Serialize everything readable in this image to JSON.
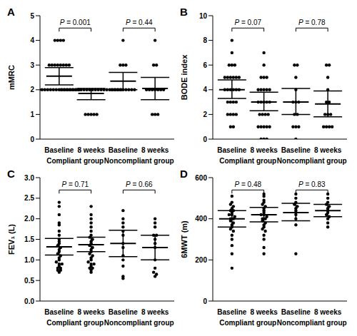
{
  "chart_data": [
    {
      "type": "scatter",
      "panel": "A",
      "y_label": "mMRC",
      "categories": [
        "Baseline",
        "8 weeks",
        "Baseline",
        "8 weeks"
      ],
      "groups": [
        "Compliant group",
        "Noncompliant group"
      ],
      "ylim": [
        0,
        5
      ],
      "yticks": [
        0,
        1,
        2,
        3,
        4,
        5
      ],
      "color": "#000000",
      "marker": "circle",
      "points": [
        [
          4,
          4,
          4,
          4,
          3,
          3,
          3,
          3,
          3,
          3,
          3,
          3,
          2,
          2,
          2,
          2,
          2,
          2,
          2,
          2,
          2,
          2,
          2,
          2,
          2,
          2,
          2
        ],
        [
          2,
          2,
          2,
          2,
          2,
          2,
          2,
          2,
          2,
          2,
          2,
          2,
          2,
          2,
          2,
          2,
          2,
          2,
          2,
          2,
          2,
          2,
          1,
          1,
          1,
          1,
          1
        ],
        [
          4,
          3,
          3,
          3,
          2,
          2,
          2,
          2,
          2,
          2,
          2,
          2,
          2
        ],
        [
          4,
          3,
          3,
          2,
          2,
          2,
          2,
          2,
          2,
          2,
          1,
          1,
          1
        ]
      ],
      "mean": [
        2.55,
        1.85,
        2.35,
        2.05
      ],
      "ci_low": [
        2.2,
        1.6,
        2.0,
        1.6
      ],
      "ci_high": [
        2.9,
        2.05,
        2.7,
        2.5
      ],
      "annotations": [
        {
          "text": "P = 0.001",
          "from": 0,
          "to": 1
        },
        {
          "text": "P = 0.44",
          "from": 2,
          "to": 3
        }
      ]
    },
    {
      "type": "scatter",
      "panel": "B",
      "y_label": "BODE index",
      "categories": [
        "Baseline",
        "8 weeks",
        "Baseline",
        "8 weeks"
      ],
      "groups": [
        "Compliant group",
        "Noncompliant group"
      ],
      "ylim": [
        0,
        10
      ],
      "yticks": [
        0,
        2,
        4,
        6,
        8,
        10
      ],
      "color": "#000000",
      "marker": "circle",
      "points": [
        [
          8,
          7,
          6,
          6,
          6,
          5,
          5,
          5,
          5,
          5,
          5,
          4,
          4,
          4,
          4,
          4,
          4,
          3,
          3,
          3,
          3,
          2,
          2,
          2,
          2,
          1,
          1
        ],
        [
          7,
          6,
          5,
          5,
          5,
          4,
          4,
          4,
          4,
          4,
          3,
          3,
          3,
          3,
          3,
          2,
          2,
          2,
          2,
          1,
          1,
          1,
          1,
          1,
          0,
          0,
          0
        ],
        [
          6,
          6,
          5,
          4,
          3,
          3,
          3,
          2,
          2,
          1,
          1,
          1,
          0
        ],
        [
          6,
          6,
          5,
          4,
          3,
          3,
          2,
          2,
          2,
          1,
          1,
          1,
          1
        ]
      ],
      "mean": [
        4.0,
        3.0,
        3.0,
        2.85
      ],
      "ci_low": [
        3.3,
        2.3,
        2.0,
        1.8
      ],
      "ci_high": [
        4.8,
        3.8,
        4.1,
        3.9
      ],
      "annotations": [
        {
          "text": "P = 0.07",
          "from": 0,
          "to": 1
        },
        {
          "text": "P = 0.78",
          "from": 2,
          "to": 3
        }
      ]
    },
    {
      "type": "scatter",
      "panel": "C",
      "y_label": "FEV₁ (L)",
      "categories": [
        "Baseline",
        "8 weeks",
        "Baseline",
        "8 weeks"
      ],
      "groups": [
        "Compliant group",
        "Noncompliant group"
      ],
      "ylim": [
        0,
        3
      ],
      "yticks": [
        {
          "value": 0,
          "label": "0.0"
        },
        0.5,
        {
          "value": 1,
          "label": "1.0"
        },
        1.5,
        {
          "value": 2,
          "label": "2.0"
        },
        2.5,
        {
          "value": 3,
          "label": "3.0"
        }
      ],
      "color": "#000000",
      "marker": "circle",
      "points": [
        [
          2.4,
          2.3,
          2.1,
          1.9,
          1.85,
          1.7,
          1.6,
          1.5,
          1.45,
          1.4,
          1.35,
          1.3,
          1.25,
          1.2,
          1.15,
          1.1,
          1.05,
          1.0,
          0.95,
          0.9,
          0.9,
          0.85,
          0.8,
          0.8,
          0.75,
          0.75,
          0.7
        ],
        [
          2.3,
          2.1,
          2.0,
          1.9,
          1.8,
          1.7,
          1.6,
          1.55,
          1.5,
          1.45,
          1.4,
          1.35,
          1.3,
          1.25,
          1.2,
          1.15,
          1.1,
          1.05,
          1.0,
          0.95,
          0.9,
          0.9,
          0.85,
          0.8,
          0.8,
          0.75,
          0.7
        ],
        [
          2.2,
          2.0,
          1.9,
          1.8,
          1.7,
          1.6,
          1.4,
          1.3,
          1.1,
          1.0,
          0.85,
          0.6,
          0.55
        ],
        [
          2.0,
          1.9,
          1.8,
          1.6,
          1.6,
          1.5,
          1.4,
          1.3,
          1.0,
          0.8,
          0.7,
          0.65,
          0.6
        ]
      ],
      "mean": [
        1.32,
        1.37,
        1.4,
        1.3
      ],
      "ci_low": [
        1.12,
        1.2,
        1.08,
        1.0
      ],
      "ci_high": [
        1.52,
        1.55,
        1.72,
        1.6
      ],
      "annotations": [
        {
          "text": "P = 0.71",
          "from": 0,
          "to": 1
        },
        {
          "text": "P = 0.66",
          "from": 2,
          "to": 3
        }
      ]
    },
    {
      "type": "scatter",
      "panel": "D",
      "y_label": "6MWT (m)",
      "categories": [
        "Baseline",
        "8 weeks",
        "Baseline",
        "8 weeks"
      ],
      "groups": [
        "Compliant group",
        "Noncompliant group"
      ],
      "ylim": [
        0,
        600
      ],
      "yticks": [
        0,
        200,
        400,
        600
      ],
      "color": "#000000",
      "marker": "circle",
      "points": [
        [
          510,
          480,
          470,
          460,
          450,
          440,
          440,
          430,
          420,
          420,
          410,
          400,
          400,
          390,
          380,
          370,
          360,
          350,
          340,
          320,
          300,
          270,
          230,
          160
        ],
        [
          520,
          510,
          490,
          480,
          470,
          460,
          450,
          440,
          430,
          420,
          420,
          410,
          400,
          400,
          390,
          380,
          370,
          360,
          350,
          340,
          320,
          300,
          260,
          230
        ],
        [
          520,
          500,
          480,
          470,
          460,
          450,
          440,
          430,
          420,
          400,
          370,
          230
        ],
        [
          520,
          500,
          480,
          470,
          460,
          450,
          440,
          430,
          420,
          410,
          400,
          380,
          360
        ]
      ],
      "mean": [
        400,
        420,
        430,
        440
      ],
      "ci_low": [
        360,
        385,
        390,
        410
      ],
      "ci_high": [
        440,
        455,
        475,
        470
      ],
      "annotations": [
        {
          "text": "P = 0.48",
          "from": 0,
          "to": 1
        },
        {
          "text": "P = 0.83",
          "from": 2,
          "to": 3
        }
      ]
    }
  ]
}
